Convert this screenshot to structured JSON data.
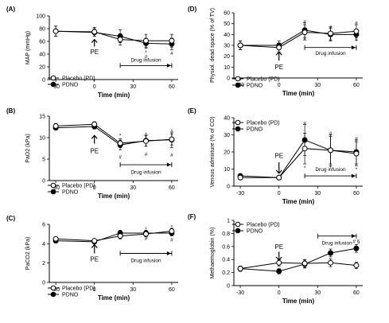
{
  "figure": {
    "time_label": "Time (min)",
    "marker_label": "PE",
    "infusion_label": "Drug infusion",
    "legend_placebo": "Placebo (PD)",
    "legend_pdno": "PDNO"
  },
  "chart_data": [
    {
      "id": "A",
      "panel_label": "(A)",
      "type": "line",
      "title": "",
      "xlabel": "Time (min)",
      "ylabel": "MAP (mmHg)",
      "xlim": [
        -35,
        65
      ],
      "ylim": [
        0,
        100
      ],
      "xticks": [
        -30,
        0,
        30,
        60
      ],
      "yticks": [
        0,
        20,
        40,
        60,
        80,
        100
      ],
      "series": [
        {
          "name": "Placebo (PD)",
          "marker": "open-circle",
          "x": [
            -30,
            0,
            20,
            40,
            60
          ],
          "y": [
            76,
            75,
            63,
            61,
            61
          ],
          "err": [
            8,
            7,
            9,
            10,
            10
          ]
        },
        {
          "name": "PDNO",
          "marker": "filled-circle",
          "x": [
            -30,
            0,
            20,
            40,
            60
          ],
          "y": [
            76,
            74,
            68,
            57,
            56
          ],
          "err": [
            8,
            6,
            10,
            8,
            9
          ]
        }
      ],
      "annotations": [
        {
          "x": 40,
          "y": 43,
          "text": "*"
        },
        {
          "x": 40,
          "y": 36,
          "text": "#"
        },
        {
          "x": 60,
          "y": 42,
          "text": "#"
        }
      ],
      "pe_arrow": {
        "x": 0,
        "direction": "up",
        "tip_y": 63,
        "tail_y": 52,
        "label_y": 45
      },
      "infusion_bar": {
        "x_start": 20,
        "x_end": 60,
        "y": 22,
        "label_y": 31
      }
    },
    {
      "id": "B",
      "panel_label": "(B)",
      "type": "line",
      "title": "",
      "xlabel": "Time (min)",
      "ylabel": "PaO2 (kPa)",
      "xlim": [
        -35,
        65
      ],
      "ylim": [
        0,
        15
      ],
      "xticks": [
        -30,
        0,
        30,
        60
      ],
      "yticks": [
        0,
        5,
        10,
        15
      ],
      "series": [
        {
          "name": "Placebo (PD)",
          "marker": "open-circle",
          "x": [
            -30,
            0,
            20,
            40,
            60
          ],
          "y": [
            12.7,
            13.1,
            8.7,
            9.2,
            9.6
          ],
          "err": [
            0.6,
            0.6,
            1.0,
            1.2,
            1.3
          ]
        },
        {
          "name": "PDNO",
          "marker": "filled-circle",
          "x": [
            -30,
            0,
            20,
            40,
            60
          ],
          "y": [
            12.3,
            12.6,
            8.3,
            9.3,
            9.5
          ],
          "err": [
            0.5,
            0.6,
            1.1,
            1.3,
            1.8
          ]
        }
      ],
      "annotations": [
        {
          "x": 20,
          "y": 10.6,
          "text": "*"
        },
        {
          "x": 40,
          "y": 10.8,
          "text": "*"
        },
        {
          "x": 60,
          "y": 11.6,
          "text": "*"
        },
        {
          "x": 20,
          "y": 5.6,
          "text": "#"
        },
        {
          "x": 40,
          "y": 6.2,
          "text": "#"
        },
        {
          "x": 60,
          "y": 6.0,
          "text": "#"
        }
      ],
      "pe_arrow": {
        "x": 0,
        "direction": "up",
        "tip_y": 10.5,
        "tail_y": 8.6,
        "label_y": 7.1
      },
      "infusion_bar": {
        "x_start": 20,
        "x_end": 60,
        "y": 3.7,
        "label_y": 2.0
      }
    },
    {
      "id": "C",
      "panel_label": "(C)",
      "type": "line",
      "title": "",
      "xlabel": "Time (min)",
      "ylabel": "PaCO2 (kPa)",
      "xlim": [
        -35,
        65
      ],
      "ylim": [
        0,
        6
      ],
      "xticks": [
        -30,
        0,
        30,
        60
      ],
      "yticks": [
        0,
        2,
        4,
        6
      ],
      "series": [
        {
          "name": "Placebo (PD)",
          "marker": "open-circle",
          "x": [
            -30,
            0,
            20,
            40,
            60
          ],
          "y": [
            4.5,
            4.3,
            4.8,
            5.0,
            5.3
          ],
          "err": [
            0.2,
            0.15,
            0.3,
            0.3,
            0.3
          ]
        },
        {
          "name": "PDNO",
          "marker": "filled-circle",
          "x": [
            -30,
            0,
            20,
            40,
            60
          ],
          "y": [
            4.3,
            4.2,
            5.1,
            5.1,
            5.1
          ],
          "err": [
            0.2,
            0.15,
            0.3,
            0.3,
            0.3
          ]
        }
      ],
      "annotations": [
        {
          "x": 40,
          "y": 5.55,
          "text": "*"
        },
        {
          "x": 60,
          "y": 5.75,
          "text": "*"
        },
        {
          "x": 40,
          "y": 4.55,
          "text": "#"
        },
        {
          "x": 60,
          "y": 4.45,
          "text": "#"
        }
      ],
      "pe_arrow": {
        "x": 0,
        "direction": "up",
        "tip_y": 3.9,
        "tail_y": 3.0,
        "label_y": 2.5
      },
      "infusion_bar": {
        "x_start": 20,
        "x_end": 60,
        "y": 3.0,
        "label_y": 2.3
      }
    },
    {
      "id": "D",
      "panel_label": "(D)",
      "type": "line",
      "title": "",
      "xlabel": "Time (min)",
      "ylabel": "Physiol. dead space (% of TV)",
      "xlim": [
        -35,
        65
      ],
      "ylim": [
        0,
        60
      ],
      "xticks": [
        -30,
        0,
        30,
        60
      ],
      "yticks": [
        0,
        10,
        20,
        30,
        40,
        50,
        60
      ],
      "series": [
        {
          "name": "Placebo (PD)",
          "marker": "open-circle",
          "x": [
            -30,
            0,
            20,
            40,
            60
          ],
          "y": [
            30,
            28,
            42,
            41,
            43
          ],
          "err": [
            4,
            4,
            7,
            6,
            6
          ]
        },
        {
          "name": "PDNO",
          "marker": "filled-circle",
          "x": [
            -30,
            0,
            20,
            40,
            60
          ],
          "y": [
            30,
            30,
            44,
            40,
            40
          ],
          "err": [
            4,
            4,
            7,
            6,
            5
          ]
        }
      ],
      "annotations": [
        {
          "x": 20,
          "y": 52,
          "text": "#"
        },
        {
          "x": 40,
          "y": 47,
          "text": "#"
        },
        {
          "x": 60,
          "y": 51,
          "text": "#"
        },
        {
          "x": 20,
          "y": 35,
          "text": "*"
        },
        {
          "x": 40,
          "y": 35,
          "text": "*"
        },
        {
          "x": 60,
          "y": 34,
          "text": "*"
        }
      ],
      "pe_arrow": {
        "x": 0,
        "direction": "up",
        "tip_y": 24,
        "tail_y": 16,
        "label_y": 11
      },
      "infusion_bar": {
        "x_start": 20,
        "x_end": 60,
        "y": 28,
        "label_y": 23
      }
    },
    {
      "id": "E",
      "panel_label": "(E)",
      "type": "line",
      "title": "",
      "xlabel": "Time (min)",
      "ylabel": "Venous admixture (% of CO)",
      "xlim": [
        -35,
        65
      ],
      "ylim": [
        0,
        40
      ],
      "xticks": [
        -30,
        0,
        30,
        60
      ],
      "yticks": [
        0,
        10,
        20,
        30,
        40
      ],
      "series": [
        {
          "name": "Placebo (PD)",
          "marker": "open-circle",
          "x": [
            -30,
            0,
            20,
            40,
            60
          ],
          "y": [
            5,
            5,
            22,
            21,
            19
          ],
          "err": [
            1,
            1,
            9,
            8,
            7
          ]
        },
        {
          "name": "PDNO",
          "marker": "filled-circle",
          "x": [
            -30,
            0,
            20,
            40,
            60
          ],
          "y": [
            6,
            5,
            27,
            21,
            20
          ],
          "err": [
            1,
            1,
            9,
            9,
            7
          ]
        }
      ],
      "annotations": [
        {
          "x": 20,
          "y": 37,
          "text": "#"
        },
        {
          "x": 40,
          "y": 31,
          "text": "#"
        },
        {
          "x": 60,
          "y": 28,
          "text": "#"
        },
        {
          "x": 20,
          "y": 11,
          "text": "*"
        },
        {
          "x": 40,
          "y": 11,
          "text": "*"
        },
        {
          "x": 60,
          "y": 10,
          "text": "*"
        }
      ],
      "pe_arrow": {
        "x": 0,
        "direction": "down",
        "tip_y": 7.5,
        "tail_y": 14,
        "label_y": 16
      },
      "infusion_bar": {
        "x_start": 20,
        "x_end": 60,
        "y": 6,
        "label_y": 10
      }
    },
    {
      "id": "F",
      "panel_label": "(F)",
      "type": "line",
      "title": "",
      "xlabel": "Time (min)",
      "ylabel": "Methaemoglobin (%)",
      "xlim": [
        -35,
        65
      ],
      "ylim": [
        0,
        1
      ],
      "xticks": [
        -30,
        0,
        30,
        60
      ],
      "yticks": [
        0,
        0.2,
        0.4,
        0.6,
        0.8,
        1.0
      ],
      "series": [
        {
          "name": "Placebo (PD)",
          "marker": "open-circle",
          "x": [
            -30,
            0,
            20,
            40,
            60
          ],
          "y": [
            0.26,
            0.35,
            0.34,
            0.35,
            0.31
          ],
          "err": [
            0.04,
            0.05,
            0.06,
            0.06,
            0.05
          ]
        },
        {
          "name": "PDNO",
          "marker": "filled-circle",
          "x": [
            -30,
            0,
            20,
            40,
            60
          ],
          "y": [
            0.26,
            0.22,
            0.33,
            0.5,
            0.57
          ],
          "err": [
            0.04,
            0.04,
            0.06,
            0.06,
            0.06
          ]
        }
      ],
      "annotations": [
        {
          "x": 60,
          "y": 0.68,
          "text": "# §"
        }
      ],
      "pe_arrow": {
        "x": 0,
        "direction": "down",
        "tip_y": 0.39,
        "tail_y": 0.52,
        "label_y": 0.55
      },
      "infusion_bar": {
        "x_start": 30,
        "x_end": 60,
        "y": 0.76,
        "label_y": 0.66
      }
    }
  ]
}
